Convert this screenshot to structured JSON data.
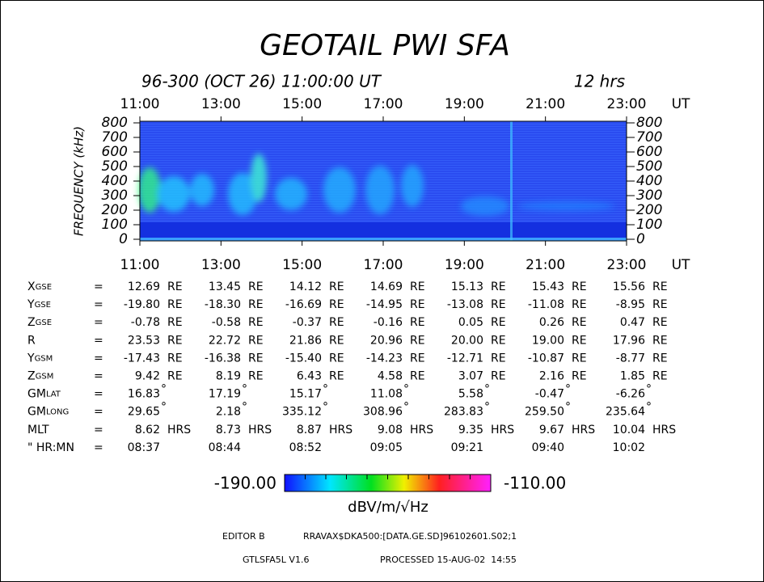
{
  "header": {
    "title": "GEOTAIL PWI SFA",
    "date": "96-300 (OCT 26) 11:00:00 UT",
    "span": "12 hrs"
  },
  "time_axis": {
    "ticks": [
      "11:00",
      "13:00",
      "15:00",
      "17:00",
      "19:00",
      "21:00",
      "23:00"
    ],
    "unit": "UT"
  },
  "frequency_axis": {
    "label": "FREQUENCY (kHz)",
    "ticks": [
      "800",
      "700",
      "600",
      "500",
      "400",
      "300",
      "200",
      "100",
      "0"
    ]
  },
  "ephemeris": {
    "separator": "=",
    "rows": [
      {
        "label": "X",
        "sub": "GSE",
        "unit": "RE",
        "values": [
          "12.69",
          "13.45",
          "14.12",
          "14.69",
          "15.13",
          "15.43",
          "15.56"
        ]
      },
      {
        "label": "Y",
        "sub": "GSE",
        "unit": "RE",
        "values": [
          "-19.80",
          "-18.30",
          "-16.69",
          "-14.95",
          "-13.08",
          "-11.08",
          "-8.95"
        ]
      },
      {
        "label": "Z",
        "sub": "GSE",
        "unit": "RE",
        "values": [
          "-0.78",
          "-0.58",
          "-0.37",
          "-0.16",
          "0.05",
          "0.26",
          "0.47"
        ]
      },
      {
        "label": "R",
        "unit": "RE",
        "values": [
          "23.53",
          "22.72",
          "21.86",
          "20.96",
          "20.00",
          "19.00",
          "17.96"
        ]
      },
      {
        "label": "Y",
        "sub": "GSM",
        "unit": "RE",
        "values": [
          "-17.43",
          "-16.38",
          "-15.40",
          "-14.23",
          "-12.71",
          "-10.87",
          "-8.77"
        ]
      },
      {
        "label": "Z",
        "sub": "GSM",
        "unit": "RE",
        "values": [
          "9.42",
          "8.19",
          "6.43",
          "4.58",
          "3.07",
          "2.16",
          "1.85"
        ]
      },
      {
        "label": "GM",
        "sub": "LAT",
        "unit": "°",
        "values": [
          "16.83",
          "17.19",
          "15.17",
          "11.08",
          "5.58",
          "-0.47",
          "-6.26"
        ]
      },
      {
        "label": "GM",
        "sub": "LONG",
        "unit": "°",
        "values": [
          "29.65",
          "2.18",
          "335.12",
          "308.96",
          "283.83",
          "259.50",
          "235.64"
        ]
      },
      {
        "label": "MLT",
        "unit": "HRS",
        "values": [
          "8.62",
          "8.73",
          "8.87",
          "9.08",
          "9.35",
          "9.67",
          "10.04"
        ]
      },
      {
        "label": "\" HR:MN",
        "values": [
          "08:37",
          "08:44",
          "08:52",
          "09:05",
          "09:21",
          "09:40",
          "10:02"
        ]
      }
    ]
  },
  "colorbar": {
    "min": "-190.00",
    "max": "-110.00",
    "unit": "dBV/m/√Hz"
  },
  "footer": {
    "editor": "EDITOR B",
    "file": "RRAVAX$DKA500:[DATA.GE.SD]96102601.S02;1",
    "program": "GTLSFA5L V1.6",
    "processed": "PROCESSED 15-AUG-02  14:55"
  }
}
